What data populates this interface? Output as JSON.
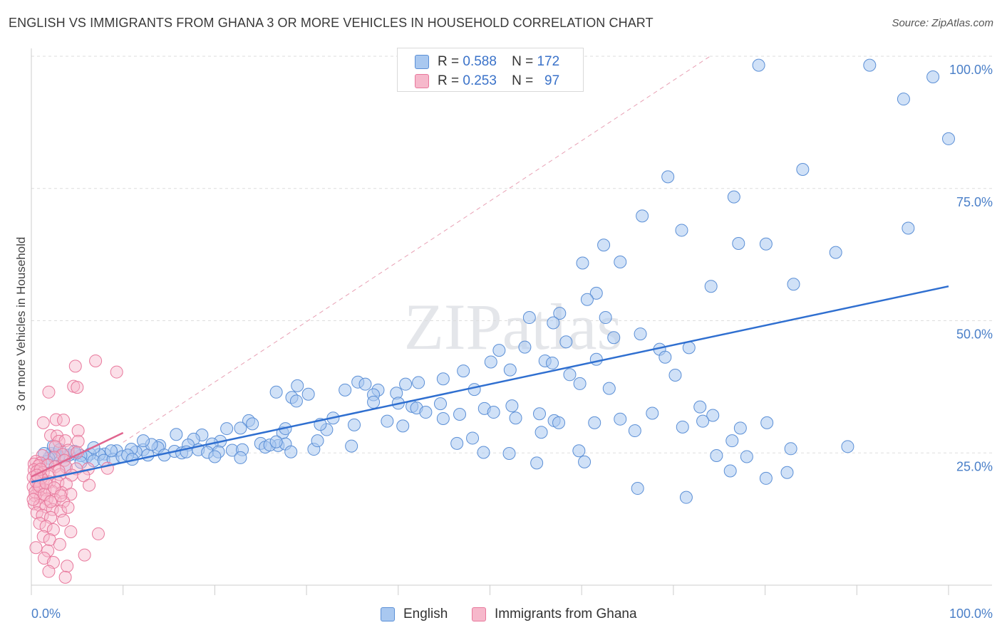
{
  "title": "ENGLISH VS IMMIGRANTS FROM GHANA 3 OR MORE VEHICLES IN HOUSEHOLD CORRELATION CHART",
  "source": "Source: ZipAtlas.com",
  "watermark": "ZIPatlas",
  "colors": {
    "english_fill": "#a9c8f0",
    "english_stroke": "#5b8fd6",
    "english_line": "#2f6fd0",
    "ghana_fill": "#f6b8cb",
    "ghana_stroke": "#e8789c",
    "ghana_line": "#e0658f",
    "diagonal": "#e8a0b4",
    "grid": "#dddddd",
    "axis_label": "#4a7fc8"
  },
  "legend": {
    "rows": [
      {
        "r_label": "R =",
        "r_value": "0.588",
        "n_label": "N =",
        "n_value": "172"
      },
      {
        "r_label": "R =",
        "r_value": "0.253",
        "n_label": "N =",
        "n_value": "97"
      }
    ]
  },
  "bottom_legend": {
    "english": "English",
    "ghana": "Immigrants from Ghana"
  },
  "chart_data": {
    "type": "scatter",
    "title": "ENGLISH VS IMMIGRANTS FROM GHANA 3 OR MORE VEHICLES IN HOUSEHOLD CORRELATION CHART",
    "xlabel": "",
    "ylabel": "3 or more Vehicles in Household",
    "xlim": [
      0,
      100
    ],
    "ylim": [
      0,
      100
    ],
    "x_tick_labels": [
      "0.0%",
      "100.0%"
    ],
    "y_tick_labels": [
      {
        "value": 100,
        "label": "100.0%"
      },
      {
        "value": 75,
        "label": "75.0%"
      },
      {
        "value": 50,
        "label": "50.0%"
      },
      {
        "value": 25,
        "label": "25.0%"
      }
    ],
    "grid": true,
    "legend_position": "top-center",
    "series": [
      {
        "name": "English",
        "r": 0.588,
        "n": 172,
        "trend": {
          "x0": 0,
          "y0": 19.5,
          "x1": 100,
          "y1": 56.5
        },
        "points": [
          [
            79.3,
            98.3
          ],
          [
            91.4,
            98.3
          ],
          [
            98.3,
            96.1
          ],
          [
            95.1,
            91.9
          ],
          [
            100,
            84.4
          ],
          [
            84.1,
            78.6
          ],
          [
            69.4,
            77.2
          ],
          [
            76.6,
            73.4
          ],
          [
            66.6,
            69.8
          ],
          [
            70.9,
            67.1
          ],
          [
            95.6,
            67.5
          ],
          [
            77.1,
            64.6
          ],
          [
            80.1,
            64.5
          ],
          [
            62.4,
            64.3
          ],
          [
            87.7,
            62.9
          ],
          [
            60.1,
            60.9
          ],
          [
            64.2,
            61.1
          ],
          [
            74.1,
            56.5
          ],
          [
            83.1,
            56.9
          ],
          [
            61.6,
            55.2
          ],
          [
            60.6,
            54.0
          ],
          [
            57.6,
            51.4
          ],
          [
            62.6,
            50.6
          ],
          [
            54.3,
            50.6
          ],
          [
            56.9,
            49.6
          ],
          [
            66.4,
            47.5
          ],
          [
            63.5,
            46.8
          ],
          [
            71.7,
            44.9
          ],
          [
            68.5,
            44.6
          ],
          [
            61.6,
            42.7
          ],
          [
            56.0,
            42.4
          ],
          [
            50.1,
            42.2
          ],
          [
            52.2,
            40.7
          ],
          [
            58.7,
            39.8
          ],
          [
            59.8,
            38.1
          ],
          [
            47.1,
            40.5
          ],
          [
            44.9,
            39.0
          ],
          [
            42.2,
            38.3
          ],
          [
            40.8,
            38.0
          ],
          [
            35.6,
            38.4
          ],
          [
            36.4,
            38.0
          ],
          [
            29.0,
            37.7
          ],
          [
            34.2,
            36.9
          ],
          [
            37.8,
            36.9
          ],
          [
            37.3,
            36.0
          ],
          [
            39.8,
            36.3
          ],
          [
            30.2,
            36.1
          ],
          [
            26.7,
            36.5
          ],
          [
            28.4,
            35.5
          ],
          [
            28.9,
            34.8
          ],
          [
            40.0,
            34.4
          ],
          [
            41.5,
            33.8
          ],
          [
            42.0,
            33.5
          ],
          [
            44.6,
            34.3
          ],
          [
            43.0,
            32.7
          ],
          [
            46.7,
            32.3
          ],
          [
            49.4,
            33.4
          ],
          [
            50.4,
            32.7
          ],
          [
            52.8,
            31.6
          ],
          [
            52.4,
            33.9
          ],
          [
            55.4,
            32.4
          ],
          [
            57.0,
            31.1
          ],
          [
            57.5,
            30.7
          ],
          [
            55.6,
            28.9
          ],
          [
            61.4,
            30.7
          ],
          [
            64.2,
            31.4
          ],
          [
            67.7,
            32.5
          ],
          [
            65.8,
            29.2
          ],
          [
            71.0,
            29.9
          ],
          [
            72.9,
            33.7
          ],
          [
            74.3,
            32.1
          ],
          [
            77.3,
            29.7
          ],
          [
            80.2,
            30.7
          ],
          [
            76.4,
            27.3
          ],
          [
            82.8,
            25.8
          ],
          [
            89.0,
            26.2
          ],
          [
            59.7,
            25.4
          ],
          [
            60.3,
            23.3
          ],
          [
            55.1,
            23.1
          ],
          [
            52.1,
            24.9
          ],
          [
            48.1,
            27.8
          ],
          [
            46.4,
            26.8
          ],
          [
            49.3,
            25.1
          ],
          [
            38.8,
            31.0
          ],
          [
            35.2,
            30.3
          ],
          [
            32.2,
            29.4
          ],
          [
            31.5,
            30.4
          ],
          [
            27.4,
            28.8
          ],
          [
            27.7,
            29.6
          ],
          [
            23.7,
            31.1
          ],
          [
            24.1,
            30.5
          ],
          [
            22.8,
            29.7
          ],
          [
            21.3,
            29.6
          ],
          [
            18.6,
            28.4
          ],
          [
            15.8,
            28.5
          ],
          [
            17.7,
            27.6
          ],
          [
            20.6,
            27.2
          ],
          [
            25.0,
            26.8
          ],
          [
            26.9,
            26.4
          ],
          [
            19.7,
            26.7
          ],
          [
            17.1,
            26.5
          ],
          [
            14.0,
            26.4
          ],
          [
            13.8,
            26.0
          ],
          [
            12.2,
            25.6
          ],
          [
            11.4,
            25.2
          ],
          [
            10.9,
            25.7
          ],
          [
            9.3,
            25.4
          ],
          [
            8.0,
            24.8
          ],
          [
            7.4,
            24.7
          ],
          [
            6.4,
            24.8
          ],
          [
            6.0,
            24.2
          ],
          [
            5.4,
            24.5
          ],
          [
            4.8,
            24.8
          ],
          [
            4.1,
            24.6
          ],
          [
            3.6,
            24.3
          ],
          [
            3.0,
            24.4
          ],
          [
            2.6,
            24.7
          ],
          [
            2.2,
            24.9
          ],
          [
            1.9,
            24.0
          ],
          [
            1.7,
            23.4
          ],
          [
            1.4,
            24.9
          ],
          [
            2.4,
            26.3
          ],
          [
            3.8,
            22.3
          ],
          [
            5.4,
            23.2
          ],
          [
            6.8,
            23.5
          ],
          [
            7.9,
            23.6
          ],
          [
            8.9,
            23.8
          ],
          [
            9.9,
            24.3
          ],
          [
            10.5,
            24.6
          ],
          [
            12.7,
            24.6
          ],
          [
            14.5,
            24.6
          ],
          [
            15.6,
            25.3
          ],
          [
            16.4,
            25.0
          ],
          [
            18.2,
            25.6
          ],
          [
            19.2,
            25.1
          ],
          [
            20.4,
            25.2
          ],
          [
            21.9,
            25.5
          ],
          [
            23.0,
            25.6
          ],
          [
            25.5,
            26.1
          ],
          [
            27.7,
            26.7
          ],
          [
            30.8,
            25.7
          ],
          [
            34.9,
            26.3
          ],
          [
            11.0,
            23.8
          ],
          [
            13.1,
            26.6
          ],
          [
            4.7,
            25.3
          ],
          [
            6.8,
            26.0
          ],
          [
            3.1,
            25.6
          ],
          [
            8.7,
            25.4
          ],
          [
            12.2,
            27.3
          ],
          [
            16.9,
            25.2
          ],
          [
            20.0,
            24.3
          ],
          [
            22.8,
            24.1
          ],
          [
            26.0,
            26.5
          ],
          [
            28.3,
            25.2
          ],
          [
            31.2,
            27.3
          ],
          [
            26.7,
            27.1
          ],
          [
            32.9,
            31.6
          ],
          [
            37.3,
            34.6
          ],
          [
            40.5,
            30.1
          ],
          [
            44.9,
            31.5
          ],
          [
            48.3,
            37.0
          ],
          [
            51.0,
            44.4
          ],
          [
            53.8,
            45.0
          ],
          [
            56.8,
            42.0
          ],
          [
            58.3,
            46.0
          ],
          [
            63.0,
            37.2
          ],
          [
            69.1,
            43.1
          ],
          [
            70.2,
            39.7
          ],
          [
            73.2,
            31.0
          ],
          [
            74.7,
            24.5
          ],
          [
            78.0,
            24.3
          ],
          [
            76.2,
            21.6
          ],
          [
            82.4,
            21.3
          ],
          [
            80.1,
            20.2
          ],
          [
            71.4,
            16.6
          ],
          [
            66.1,
            18.3
          ]
        ]
      },
      {
        "name": "Immigrants from Ghana",
        "r": 0.253,
        "n": 97,
        "trend": {
          "x0": 0,
          "y0": 20.5,
          "x1": 10,
          "y1": 28.8
        },
        "points": [
          [
            7.0,
            42.4
          ],
          [
            4.8,
            41.4
          ],
          [
            9.3,
            40.3
          ],
          [
            4.6,
            37.6
          ],
          [
            5.0,
            37.4
          ],
          [
            1.9,
            36.5
          ],
          [
            2.7,
            31.3
          ],
          [
            3.5,
            31.2
          ],
          [
            1.3,
            30.7
          ],
          [
            2.1,
            28.3
          ],
          [
            2.8,
            28.2
          ],
          [
            5.1,
            29.2
          ],
          [
            3.0,
            27.2
          ],
          [
            3.7,
            27.3
          ],
          [
            5.1,
            27.2
          ],
          [
            2.6,
            26.2
          ],
          [
            4.0,
            25.5
          ],
          [
            3.4,
            24.7
          ],
          [
            5.0,
            25.1
          ],
          [
            1.2,
            24.5
          ],
          [
            2.5,
            24.2
          ],
          [
            3.6,
            23.6
          ],
          [
            0.5,
            23.4
          ],
          [
            1.0,
            23.1
          ],
          [
            0.3,
            22.9
          ],
          [
            0.8,
            22.6
          ],
          [
            1.8,
            22.7
          ],
          [
            2.6,
            22.4
          ],
          [
            3.8,
            22.3
          ],
          [
            4.9,
            22.0
          ],
          [
            6.2,
            22.0
          ],
          [
            8.3,
            22.1
          ],
          [
            0.3,
            21.8
          ],
          [
            0.6,
            21.5
          ],
          [
            1.3,
            21.3
          ],
          [
            2.0,
            21.0
          ],
          [
            3.1,
            20.9
          ],
          [
            4.4,
            20.8
          ],
          [
            5.7,
            20.7
          ],
          [
            0.2,
            20.4
          ],
          [
            0.7,
            20.0
          ],
          [
            1.3,
            19.8
          ],
          [
            2.0,
            19.5
          ],
          [
            2.9,
            19.4
          ],
          [
            3.8,
            19.1
          ],
          [
            6.3,
            18.9
          ],
          [
            0.2,
            18.6
          ],
          [
            0.8,
            18.3
          ],
          [
            1.5,
            18.0
          ],
          [
            2.3,
            17.7
          ],
          [
            3.3,
            17.5
          ],
          [
            4.3,
            17.2
          ],
          [
            0.4,
            16.9
          ],
          [
            1.0,
            16.6
          ],
          [
            1.7,
            16.3
          ],
          [
            2.6,
            16.1
          ],
          [
            3.5,
            15.8
          ],
          [
            0.3,
            15.4
          ],
          [
            0.9,
            15.1
          ],
          [
            1.6,
            14.8
          ],
          [
            2.3,
            14.3
          ],
          [
            3.2,
            14.0
          ],
          [
            0.6,
            13.7
          ],
          [
            1.2,
            13.2
          ],
          [
            2.1,
            12.8
          ],
          [
            3.5,
            12.3
          ],
          [
            0.9,
            11.7
          ],
          [
            1.6,
            11.1
          ],
          [
            2.4,
            10.5
          ],
          [
            4.3,
            10.1
          ],
          [
            7.3,
            9.7
          ],
          [
            1.3,
            9.2
          ],
          [
            2.0,
            8.6
          ],
          [
            3.1,
            7.7
          ],
          [
            0.5,
            7.1
          ],
          [
            1.8,
            6.5
          ],
          [
            5.8,
            5.7
          ],
          [
            1.4,
            5.1
          ],
          [
            2.4,
            4.3
          ],
          [
            3.9,
            3.6
          ],
          [
            1.9,
            2.6
          ],
          [
            3.7,
            1.5
          ],
          [
            0.8,
            19.0
          ],
          [
            1.1,
            20.3
          ],
          [
            0.4,
            17.6
          ],
          [
            0.5,
            19.6
          ],
          [
            0.9,
            18.7
          ],
          [
            1.4,
            17.2
          ],
          [
            2.1,
            15.8
          ],
          [
            3.0,
            21.6
          ],
          [
            4.0,
            14.7
          ],
          [
            1.0,
            21.9
          ],
          [
            0.6,
            20.8
          ],
          [
            1.6,
            19.3
          ],
          [
            2.5,
            18.4
          ],
          [
            0.2,
            16.2
          ],
          [
            3.2,
            16.9
          ]
        ]
      }
    ],
    "reference_line": {
      "x0": 10,
      "y0": 27,
      "x1": 74,
      "y1": 100,
      "style": "dashed"
    }
  }
}
